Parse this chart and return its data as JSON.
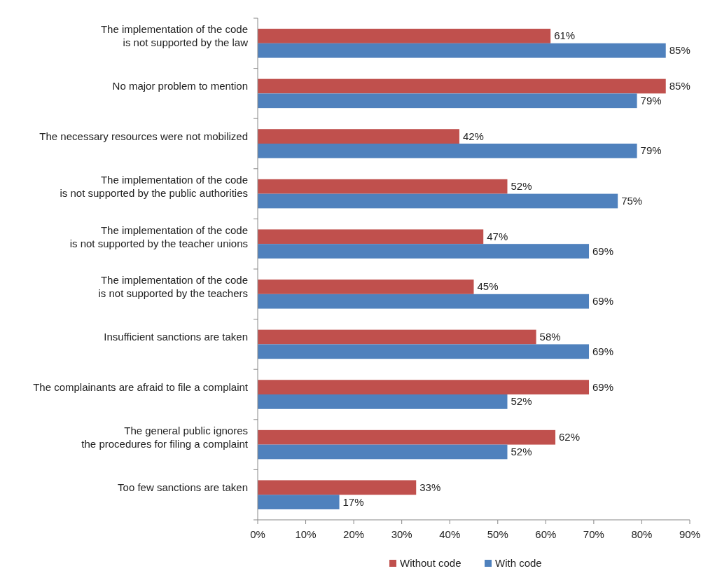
{
  "chart_data": {
    "type": "bar",
    "orientation": "horizontal",
    "categories": [
      "The implementation of the code\nis not supported by the law",
      "No major problem to mention",
      "The necessary resources were not mobilized",
      "The implementation of the code\nis not supported by the public authorities",
      "The implementation of the code\nis not supported by the teacher unions",
      "The implementation of the code\nis not supported by the teachers",
      "Insufficient sanctions are taken",
      "The complainants are afraid to file a complaint",
      "The general public ignores\nthe procedures for filing a complaint",
      "Too few sanctions are taken"
    ],
    "series": [
      {
        "name": "Without code",
        "color": "#c0504d",
        "values": [
          61,
          85,
          42,
          52,
          47,
          45,
          58,
          69,
          62,
          33
        ],
        "value_labels": [
          "61%",
          "85%",
          "42%",
          "52%",
          "47%",
          "45%",
          "58%",
          "69%",
          "62%",
          "33%"
        ]
      },
      {
        "name": "With code",
        "color": "#4f81bd",
        "values": [
          85,
          79,
          79,
          75,
          69,
          69,
          69,
          52,
          52,
          17
        ],
        "value_labels": [
          "85%",
          "79%",
          "79%",
          "75%",
          "69%",
          "69%",
          "69%",
          "52%",
          "52%",
          "17%"
        ]
      }
    ],
    "xlim": [
      0,
      90
    ],
    "xticks": [
      {
        "value": 0,
        "label": "0%"
      },
      {
        "value": 10,
        "label": "10%"
      },
      {
        "value": 20,
        "label": "20%"
      },
      {
        "value": 30,
        "label": "30%"
      },
      {
        "value": 40,
        "label": "40%"
      },
      {
        "value": 50,
        "label": "50%"
      },
      {
        "value": 60,
        "label": "60%"
      },
      {
        "value": 70,
        "label": "70%"
      },
      {
        "value": 80,
        "label": "80%"
      },
      {
        "value": 90,
        "label": "90%"
      }
    ],
    "legend": "bottom"
  }
}
